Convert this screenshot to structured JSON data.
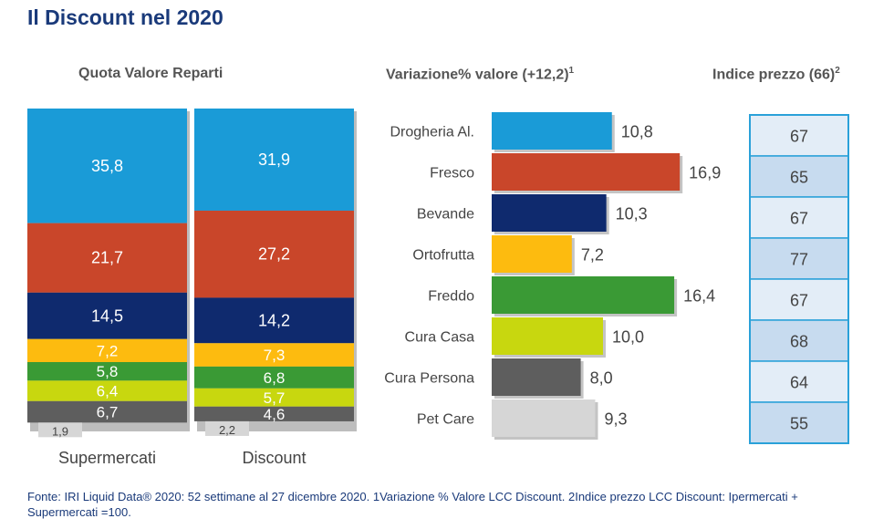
{
  "title": "Il Discount nel 2020",
  "headers": {
    "stacked": "Quota Valore Reparti",
    "variation": "Variazione% valore (+12,2)",
    "variation_note": "1",
    "index": "Indice prezzo (66)",
    "index_note": "2"
  },
  "footer": "Fonte: IRI Liquid Data® 2020: 52 settimane al 27 dicembre 2020. 1Variazione % Valore LCC Discount. 2Indice prezzo LCC Discount: Ipermercati + Supermercati =100.",
  "chart_data": [
    {
      "type": "bar",
      "stacked": true,
      "title": "Quota Valore Reparti",
      "categories": [
        "Supermercati",
        "Discount"
      ],
      "series": [
        {
          "name": "Drogheria Al.",
          "color": "#1a9bd7",
          "values": [
            35.8,
            31.9
          ],
          "labels": [
            "35,8",
            "31,9"
          ]
        },
        {
          "name": "Fresco",
          "color": "#c9462a",
          "values": [
            21.7,
            27.2
          ],
          "labels": [
            "21,7",
            "27,2"
          ]
        },
        {
          "name": "Bevande",
          "color": "#0f2a6e",
          "values": [
            14.5,
            14.2
          ],
          "labels": [
            "14,5",
            "14,2"
          ]
        },
        {
          "name": "Ortofrutta",
          "color": "#fdbb0f",
          "values": [
            7.2,
            7.3
          ],
          "labels": [
            "7,2",
            "7,3"
          ]
        },
        {
          "name": "Freddo",
          "color": "#3a9a35",
          "values": [
            5.8,
            6.8
          ],
          "labels": [
            "5,8",
            "6,8"
          ]
        },
        {
          "name": "Cura Casa",
          "color": "#c8d70f",
          "values": [
            6.4,
            5.7
          ],
          "labels": [
            "6,4",
            "5,7"
          ]
        },
        {
          "name": "Cura Persona",
          "color": "#5e5e5e",
          "values": [
            6.7,
            4.6
          ],
          "labels": [
            "6,7",
            "4,6"
          ]
        },
        {
          "name": "Pet Care",
          "color": "#d6d6d6",
          "values": [
            1.9,
            2.2
          ],
          "labels": [
            "1,9",
            "2,2"
          ]
        }
      ]
    },
    {
      "type": "bar",
      "orientation": "horizontal",
      "title": "Variazione% valore (+12,2)",
      "categories": [
        "Drogheria Al.",
        "Fresco",
        "Bevande",
        "Ortofrutta",
        "Freddo",
        "Cura Casa",
        "Cura Persona",
        "Pet Care"
      ],
      "values": [
        10.8,
        16.9,
        10.3,
        7.2,
        16.4,
        10.0,
        8.0,
        9.3
      ],
      "labels": [
        "10,8",
        "16,9",
        "10,3",
        "7,2",
        "16,4",
        "10,0",
        "8,0",
        "9,3"
      ],
      "colors": [
        "#1a9bd7",
        "#c9462a",
        "#0f2a6e",
        "#fdbb0f",
        "#3a9a35",
        "#c8d70f",
        "#5e5e5e",
        "#d6d6d6"
      ]
    },
    {
      "type": "table",
      "title": "Indice prezzo (66)",
      "values": [
        67,
        65,
        67,
        77,
        67,
        68,
        64,
        55
      ],
      "colors": [
        "#e3edf7",
        "#c7dbef"
      ],
      "border_color": "#2aa1d9"
    }
  ]
}
